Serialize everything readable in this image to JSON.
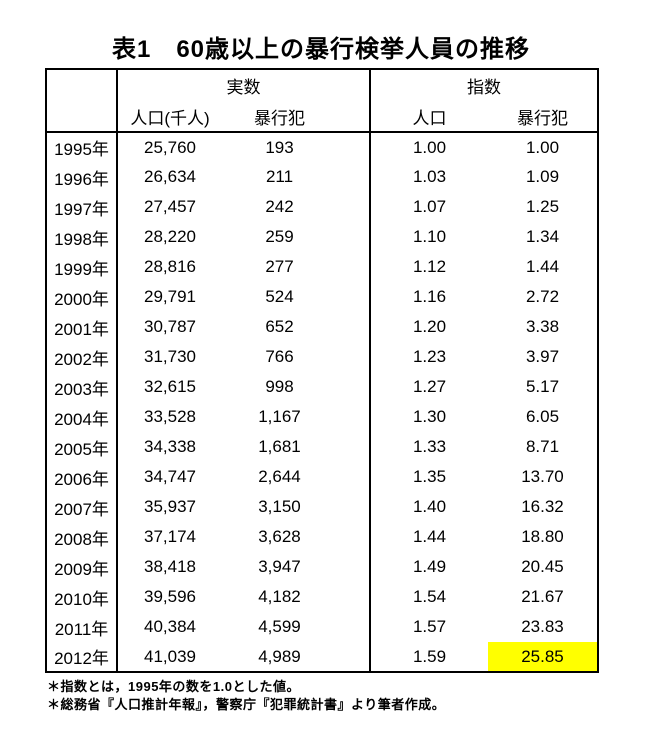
{
  "title": "表1　60歳以上の暴行検挙人員の推移",
  "colors": {
    "background": "#FFFFFF",
    "text": "#000000",
    "border": "#000000",
    "highlight": "#FFFF00"
  },
  "chart_data": {
    "type": "table",
    "title": "表1　60歳以上の暴行検挙人員の推移",
    "column_groups": [
      {
        "label": "実数",
        "span": 2
      },
      {
        "label": "指数",
        "span": 2
      }
    ],
    "columns": [
      "",
      "人口(千人)",
      "暴行犯",
      "人口",
      "暴行犯"
    ],
    "rows": [
      [
        "1995年",
        "25,760",
        "193",
        "1.00",
        "1.00"
      ],
      [
        "1996年",
        "26,634",
        "211",
        "1.03",
        "1.09"
      ],
      [
        "1997年",
        "27,457",
        "242",
        "1.07",
        "1.25"
      ],
      [
        "1998年",
        "28,220",
        "259",
        "1.10",
        "1.34"
      ],
      [
        "1999年",
        "28,816",
        "277",
        "1.12",
        "1.44"
      ],
      [
        "2000年",
        "29,791",
        "524",
        "1.16",
        "2.72"
      ],
      [
        "2001年",
        "30,787",
        "652",
        "1.20",
        "3.38"
      ],
      [
        "2002年",
        "31,730",
        "766",
        "1.23",
        "3.97"
      ],
      [
        "2003年",
        "32,615",
        "998",
        "1.27",
        "5.17"
      ],
      [
        "2004年",
        "33,528",
        "1,167",
        "1.30",
        "6.05"
      ],
      [
        "2005年",
        "34,338",
        "1,681",
        "1.33",
        "8.71"
      ],
      [
        "2006年",
        "34,747",
        "2,644",
        "1.35",
        "13.70"
      ],
      [
        "2007年",
        "35,937",
        "3,150",
        "1.40",
        "16.32"
      ],
      [
        "2008年",
        "37,174",
        "3,628",
        "1.44",
        "18.80"
      ],
      [
        "2009年",
        "38,418",
        "3,947",
        "1.49",
        "20.45"
      ],
      [
        "2010年",
        "39,596",
        "4,182",
        "1.54",
        "21.67"
      ],
      [
        "2011年",
        "40,384",
        "4,599",
        "1.57",
        "23.83"
      ],
      [
        "2012年",
        "41,039",
        "4,989",
        "1.59",
        "25.85"
      ]
    ],
    "highlight": {
      "row_index": 17,
      "col_index": 4,
      "color": "#FFFF00"
    },
    "notes": [
      "＊指数とは，1995年の数を1.0とした値。",
      "＊総務省『人口推計年報』，警察庁『犯罪統計書』より筆者作成。"
    ],
    "layout_hints": {
      "grid": "outer border, vertical separators between year/実数/指数 groups, horizontal rule below header only",
      "value_alignment": "center",
      "base_year_note": "index values are relative to 1995 = 1.00"
    }
  }
}
